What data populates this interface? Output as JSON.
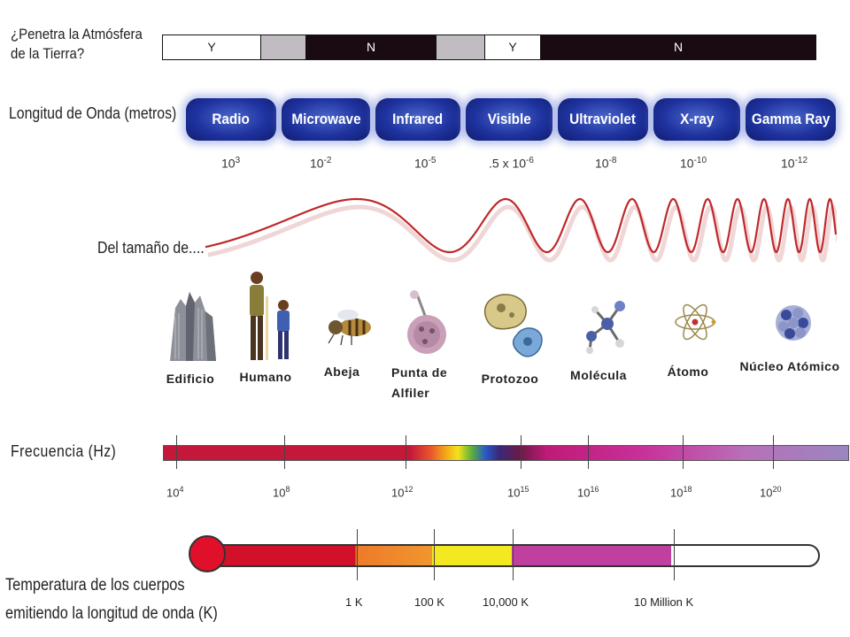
{
  "atmosphere": {
    "question": "¿Penetra la Atmósfera de la Tierra?",
    "segments": [
      {
        "label": "Y"
      },
      {
        "label": ""
      },
      {
        "label": "N"
      },
      {
        "label": ""
      },
      {
        "label": "Y"
      },
      {
        "label": "N"
      }
    ]
  },
  "wavelength": {
    "title": "Longitud de Onda (metros)",
    "bands": [
      "Radio",
      "Microwave",
      "Infrared",
      "Visible",
      "Ultraviolet",
      "X-ray",
      "Gamma Ray"
    ],
    "values": [
      {
        "base": "10",
        "exp": "3"
      },
      {
        "base": "10",
        "exp": "-2"
      },
      {
        "base": "10",
        "exp": "-5"
      },
      {
        "base": ".5 x 10",
        "exp": "-6"
      },
      {
        "base": "10",
        "exp": "-8"
      },
      {
        "base": "10",
        "exp": "-10"
      },
      {
        "base": "10",
        "exp": "-12"
      }
    ]
  },
  "size": {
    "title": "Del tamaño de....",
    "objects": [
      {
        "label": "Edificio",
        "icon": "building-icon"
      },
      {
        "label": "Humano",
        "icon": "humans-icon"
      },
      {
        "label": "Abeja",
        "icon": "bee-icon"
      },
      {
        "label_line1": "Punta de",
        "label_line2": "Alfiler",
        "icon": "pin-icon"
      },
      {
        "label": "Protozoo",
        "icon": "protozoa-icon"
      },
      {
        "label": "Molécula",
        "icon": "molecule-icon"
      },
      {
        "label": "Átomo",
        "icon": "atom-icon"
      },
      {
        "label": "Núcleo Atómico",
        "icon": "nucleus-icon"
      }
    ]
  },
  "frequency": {
    "title": "Frecuencia (Hz)",
    "ticks": [
      {
        "base": "10",
        "exp": "4"
      },
      {
        "base": "10",
        "exp": "8"
      },
      {
        "base": "10",
        "exp": "12"
      },
      {
        "base": "10",
        "exp": "15"
      },
      {
        "base": "10",
        "exp": "16"
      },
      {
        "base": "10",
        "exp": "18"
      },
      {
        "base": "10",
        "exp": "20"
      }
    ]
  },
  "temperature": {
    "title_line1": "Temperatura de los cuerpos",
    "title_line2": "emitiendo la longitud de onda (K)",
    "ticks": [
      "1 K",
      "100 K",
      "10,000 K",
      "10 Million K"
    ]
  },
  "colors": {
    "pill": "#1f33a0",
    "wave": "#c0282a",
    "atmosphere_dark": "#1a0a12",
    "atmosphere_gray": "#c0bcc2"
  }
}
